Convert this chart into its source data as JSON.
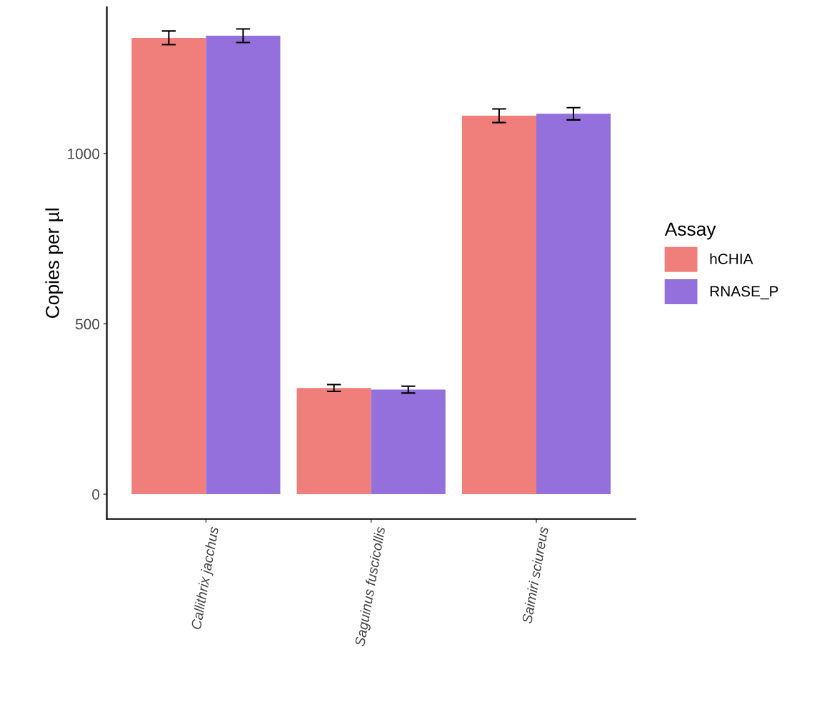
{
  "chart_data": {
    "type": "bar",
    "ylabel": "Copies per µl",
    "legend_title": "Assay",
    "legend": "right",
    "categories": [
      "Callithrix jacchus",
      "Saguinus fuscicollis",
      "Saimiri sciureus"
    ],
    "series": [
      {
        "name": "hCHIA",
        "color": "#f07f7b",
        "values": [
          1340,
          312,
          1111
        ],
        "errors": [
          20,
          10,
          20
        ]
      },
      {
        "name": "RNASE_P",
        "color": "#9370db",
        "values": [
          1346,
          307,
          1117
        ],
        "errors": [
          20,
          10,
          18
        ]
      }
    ],
    "ylim": [
      -73,
      1430
    ],
    "yticks": [
      0,
      500,
      1000
    ],
    "grid": false
  }
}
